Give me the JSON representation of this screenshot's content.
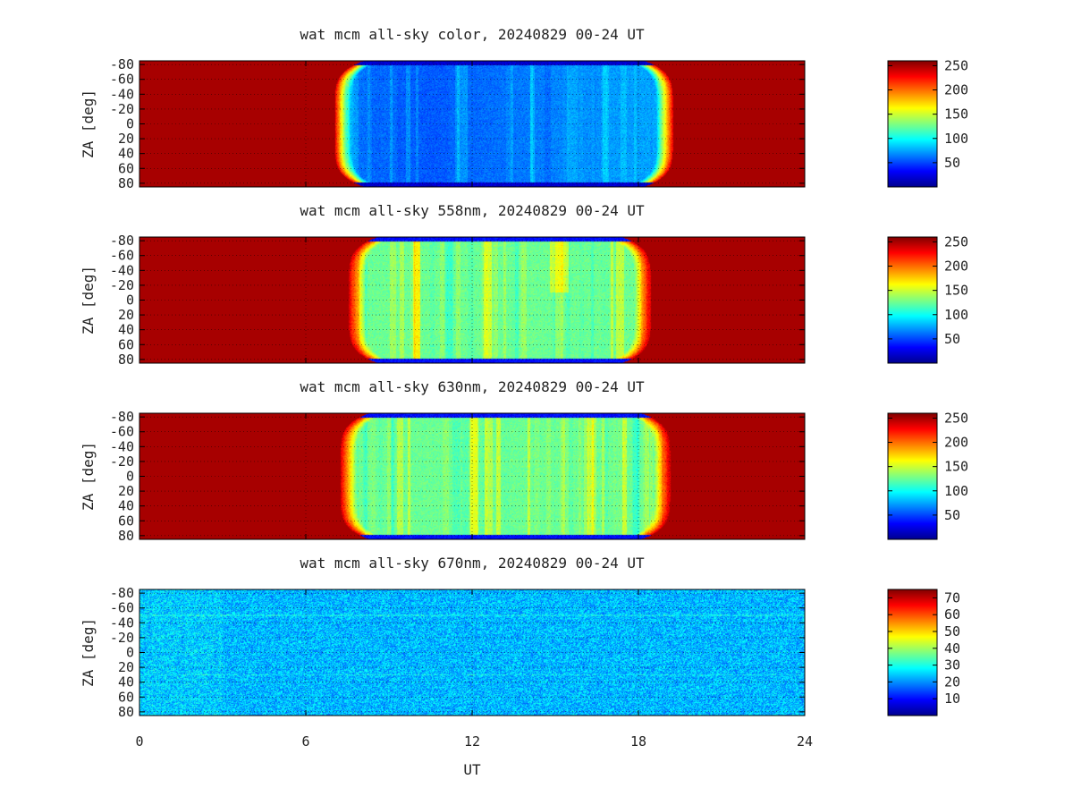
{
  "chart_data": {
    "type": "heatmap",
    "shared_xlabel": "UT",
    "x_ticks": [
      "0",
      "6",
      "12",
      "18",
      "24"
    ],
    "xlim": [
      0,
      24
    ],
    "panels": [
      {
        "title": "wat mcm all-sky color, 20240829 00-24 UT",
        "ylabel": "ZA [deg]",
        "y_ticks": [
          "-80",
          "-60",
          "-40",
          "-20",
          "0",
          "20",
          "40",
          "60",
          "80"
        ],
        "ylim": [
          -85,
          85
        ],
        "colorbar_ticks": [
          "250",
          "200",
          "150",
          "100",
          "50"
        ],
        "colorbar_range": [
          0,
          260
        ],
        "saturated_value": 250,
        "day_start_ut": 7.3,
        "day_end_ut": 19.0,
        "night_level": 60,
        "night_pattern": "blue, darkest near 10-11 UT"
      },
      {
        "title": "wat mcm all-sky 558nm, 20240829 00-24 UT",
        "ylabel": "ZA [deg]",
        "y_ticks": [
          "-80",
          "-60",
          "-40",
          "-20",
          "0",
          "20",
          "40",
          "60",
          "80"
        ],
        "ylim": [
          -85,
          85
        ],
        "colorbar_ticks": [
          "250",
          "200",
          "150",
          "100",
          "50"
        ],
        "colorbar_range": [
          0,
          260
        ],
        "saturated_value": 250,
        "day_start_ut": 7.8,
        "day_end_ut": 18.2,
        "night_level": 125,
        "night_pattern": "cyan-green, yellow streaks near 15 UT"
      },
      {
        "title": "wat mcm all-sky 630nm, 20240829 00-24 UT",
        "ylabel": "ZA [deg]",
        "y_ticks": [
          "-80",
          "-60",
          "-40",
          "-20",
          "0",
          "20",
          "40",
          "60",
          "80"
        ],
        "ylim": [
          -85,
          85
        ],
        "colorbar_ticks": [
          "250",
          "200",
          "150",
          "100",
          "50"
        ],
        "colorbar_range": [
          0,
          260
        ],
        "saturated_value": 250,
        "day_start_ut": 7.5,
        "day_end_ut": 18.9,
        "night_level": 125,
        "night_pattern": "cyan-green with yellow vertical streaks"
      },
      {
        "title": "wat mcm all-sky 670nm, 20240829 00-24 UT",
        "ylabel": "ZA [deg]",
        "y_ticks": [
          "-80",
          "-60",
          "-40",
          "-20",
          "0",
          "20",
          "40",
          "60",
          "80"
        ],
        "ylim": [
          -85,
          85
        ],
        "colorbar_ticks": [
          "70",
          "60",
          "50",
          "40",
          "30",
          "20",
          "10"
        ],
        "colorbar_range": [
          0,
          75
        ],
        "night_level": 23,
        "night_pattern": "uniform noisy blue, no daytime saturation"
      }
    ]
  }
}
